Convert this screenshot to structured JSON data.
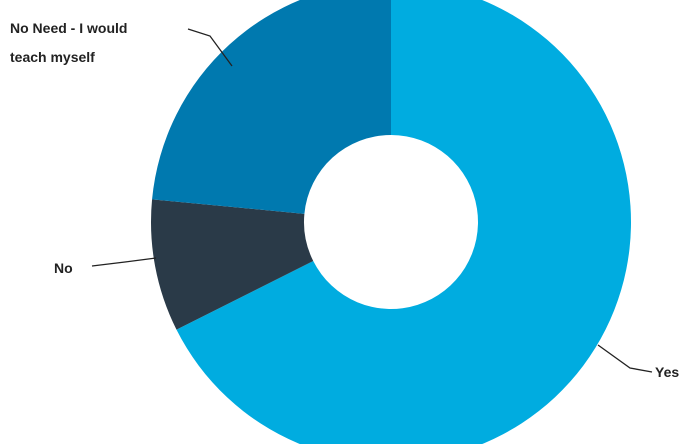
{
  "chart_data": {
    "type": "pie",
    "donut": true,
    "title": "",
    "series": [
      {
        "values": [
          {
            "label": "Yes",
            "value": 67.6,
            "color": "#00ACE0"
          },
          {
            "label": "No",
            "value": 8.9,
            "color": "#2A3A48"
          },
          {
            "label": "No Need - I would teach myself",
            "value": 23.5,
            "color": "#0079AF"
          }
        ]
      }
    ],
    "labels": {
      "yes": "Yes",
      "no": "No",
      "no_need_line1": "No Need - I would",
      "no_need_line2": "teach myself"
    },
    "legend": "none (direct labels)"
  }
}
